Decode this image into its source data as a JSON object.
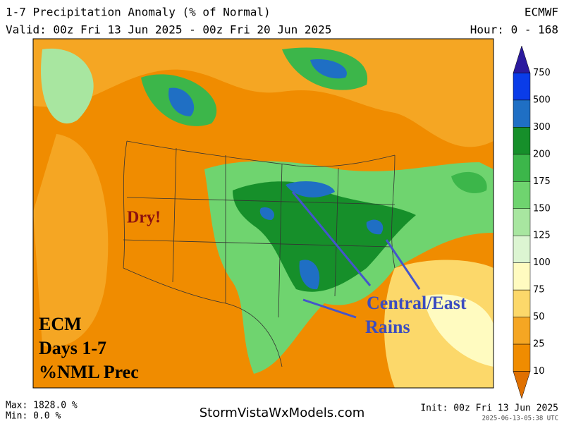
{
  "header": {
    "title": "1-7 Precipitation Anomaly (% of Normal)",
    "model": "ECMWF",
    "valid": "Valid: 00z Fri 13 Jun 2025 - 00z Fri 20 Jun 2025",
    "hours": "Hour: 0 - 168"
  },
  "annotations": {
    "dry": "Dry!",
    "rains_line1": "Central/East",
    "rains_line2": "Rains",
    "label_line1": "ECM",
    "label_line2": "Days 1-7",
    "label_line3": "%NML Prec"
  },
  "colorbar": {
    "labels": [
      "750",
      "500",
      "300",
      "200",
      "175",
      "150",
      "125",
      "100",
      "75",
      "50",
      "25",
      "10"
    ],
    "colors": [
      "#2b1a9e",
      "#0a3ce8",
      "#1f6fc4",
      "#168f2a",
      "#3cb64a",
      "#6fd46f",
      "#a8e6a0",
      "#dcf5d2",
      "#fffbc0",
      "#fcd86a",
      "#f5a623",
      "#f08c00",
      "#e07000"
    ]
  },
  "footer": {
    "max": "Max: 1828.0 %",
    "min": "Min: 0.0 %",
    "site": "StormVistaWxModels.com",
    "init": "Init: 00z Fri 13 Jun 2025",
    "stamp": "2025-06-13-05:38 UTC"
  }
}
